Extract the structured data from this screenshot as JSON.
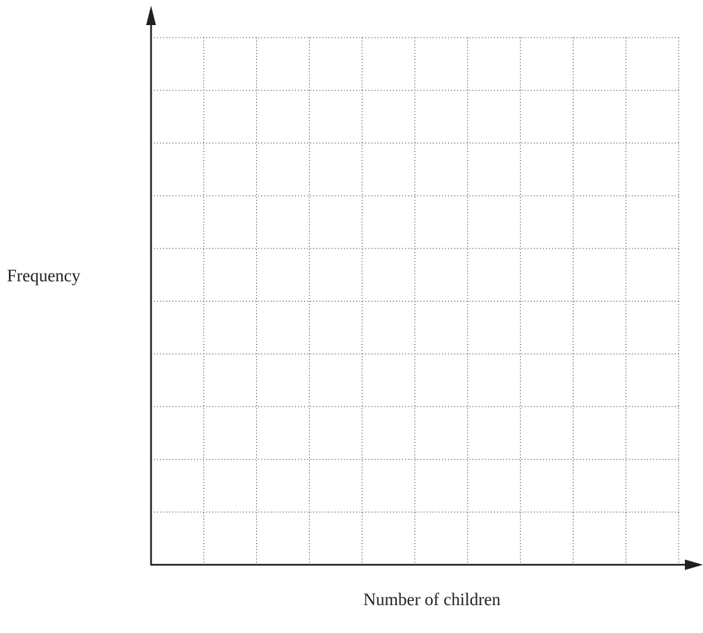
{
  "chart_data": {
    "type": "bar",
    "title": "",
    "xlabel": "Number of children",
    "ylabel": "Frequency",
    "categories": [],
    "values": [],
    "grid": true,
    "grid_style": "dotted",
    "grid_rows": 10,
    "grid_cols": 10,
    "tick_labels_x": [],
    "tick_labels_y": [],
    "legend": "none",
    "colors": {
      "axis": "#231f20",
      "grid": "#231f20",
      "background": "#ffffff"
    }
  }
}
